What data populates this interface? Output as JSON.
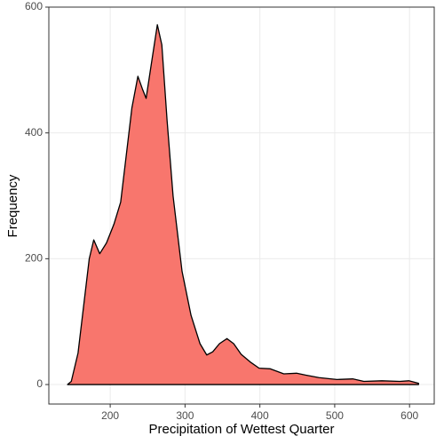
{
  "chart_data": {
    "type": "area",
    "x_label": "Precipitation of Wettest Quarter",
    "y_label": "Frequency",
    "x": [
      143,
      148,
      157,
      166,
      172,
      178,
      186,
      195,
      205,
      214,
      221,
      229,
      237,
      243,
      248,
      255,
      263,
      269,
      276,
      284,
      296,
      308,
      320,
      329,
      337,
      346,
      356,
      365,
      375,
      387,
      399,
      414,
      432,
      449,
      461,
      479,
      503,
      524,
      539,
      563,
      587,
      599,
      612
    ],
    "values": [
      0,
      5,
      50,
      140,
      200,
      230,
      208,
      225,
      255,
      290,
      360,
      440,
      490,
      470,
      455,
      510,
      572,
      540,
      420,
      300,
      180,
      110,
      65,
      47,
      52,
      65,
      73,
      65,
      48,
      36,
      26,
      25,
      17,
      18,
      15,
      11,
      8,
      9,
      5,
      6,
      5,
      6,
      2
    ],
    "color": "#f8766d",
    "xlim": [
      118,
      633
    ],
    "ylim": [
      -31,
      600
    ],
    "xticks": [
      200,
      300,
      400,
      500,
      600
    ],
    "yticks": [
      0,
      200,
      400,
      600
    ],
    "grid": true
  }
}
